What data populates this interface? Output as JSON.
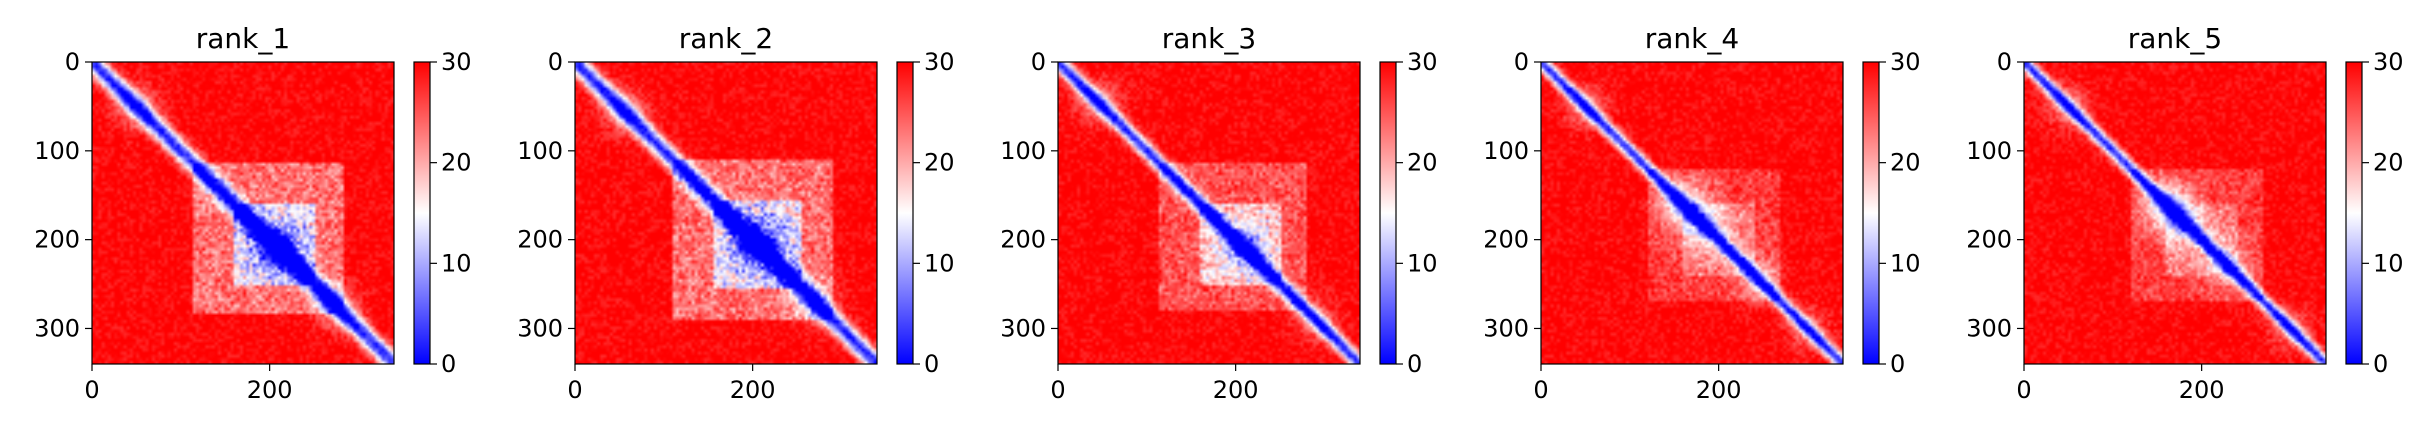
{
  "chart_data": [
    {
      "type": "heatmap",
      "title": "rank_1",
      "xlim": [
        0,
        340
      ],
      "ylim": [
        340,
        0
      ],
      "xticks": [
        {
          "value": 0,
          "label": "0"
        },
        {
          "value": 200,
          "label": "200"
        }
      ],
      "yticks": [
        {
          "value": 0,
          "label": "0"
        },
        {
          "value": 100,
          "label": "100"
        },
        {
          "value": 200,
          "label": "200"
        },
        {
          "value": 300,
          "label": "300"
        }
      ],
      "colorbar": {
        "min": 0,
        "max": 30,
        "ticks": [
          0,
          10,
          20,
          30
        ],
        "colors": [
          "#0000ff",
          "#ffffff",
          "#ff0000"
        ]
      },
      "features": {
        "diag_width": 10,
        "domain": [
          115,
          285
        ],
        "domain_strength": 0.55,
        "core": [
          160,
          250
        ],
        "core_strength": 0.85,
        "blobs": [
          [
            210,
            210,
            1.0
          ],
          [
            50,
            50,
            0.5
          ],
          [
            275,
            275,
            0.6
          ]
        ]
      }
    },
    {
      "type": "heatmap",
      "title": "rank_2",
      "xlim": [
        0,
        340
      ],
      "ylim": [
        340,
        0
      ],
      "xticks": [
        {
          "value": 0,
          "label": "0"
        },
        {
          "value": 200,
          "label": "200"
        }
      ],
      "yticks": [
        {
          "value": 0,
          "label": "0"
        },
        {
          "value": 100,
          "label": "100"
        },
        {
          "value": 200,
          "label": "200"
        },
        {
          "value": 300,
          "label": "300"
        }
      ],
      "colorbar": {
        "min": 0,
        "max": 30,
        "ticks": [
          0,
          10,
          20,
          30
        ],
        "colors": [
          "#0000ff",
          "#ffffff",
          "#ff0000"
        ]
      },
      "features": {
        "diag_width": 10,
        "domain": [
          110,
          290
        ],
        "domain_strength": 0.55,
        "core": [
          155,
          255
        ],
        "core_strength": 0.85,
        "blobs": [
          [
            205,
            205,
            1.0
          ],
          [
            55,
            55,
            0.5
          ],
          [
            270,
            270,
            0.5
          ]
        ]
      }
    },
    {
      "type": "heatmap",
      "title": "rank_3",
      "xlim": [
        0,
        340
      ],
      "ylim": [
        340,
        0
      ],
      "xticks": [
        {
          "value": 0,
          "label": "0"
        },
        {
          "value": 200,
          "label": "200"
        }
      ],
      "yticks": [
        {
          "value": 0,
          "label": "0"
        },
        {
          "value": 100,
          "label": "100"
        },
        {
          "value": 200,
          "label": "200"
        },
        {
          "value": 300,
          "label": "300"
        }
      ],
      "colorbar": {
        "min": 0,
        "max": 30,
        "ticks": [
          0,
          10,
          20,
          30
        ],
        "colors": [
          "#0000ff",
          "#ffffff",
          "#ff0000"
        ]
      },
      "features": {
        "diag_width": 8,
        "domain": [
          115,
          280
        ],
        "domain_strength": 0.4,
        "core": [
          160,
          250
        ],
        "core_strength": 0.6,
        "blobs": [
          [
            210,
            210,
            0.8
          ],
          [
            45,
            45,
            0.5
          ],
          [
            290,
            290,
            0.4
          ]
        ]
      }
    },
    {
      "type": "heatmap",
      "title": "rank_4",
      "xlim": [
        0,
        340
      ],
      "ylim": [
        340,
        0
      ],
      "xticks": [
        {
          "value": 0,
          "label": "0"
        },
        {
          "value": 200,
          "label": "200"
        }
      ],
      "yticks": [
        {
          "value": 0,
          "label": "0"
        },
        {
          "value": 100,
          "label": "100"
        },
        {
          "value": 200,
          "label": "200"
        },
        {
          "value": 300,
          "label": "300"
        }
      ],
      "colorbar": {
        "min": 0,
        "max": 30,
        "ticks": [
          0,
          10,
          20,
          30
        ],
        "colors": [
          "#0000ff",
          "#ffffff",
          "#ff0000"
        ]
      },
      "features": {
        "diag_width": 7,
        "domain": [
          120,
          270
        ],
        "domain_strength": 0.3,
        "core": [
          160,
          240
        ],
        "core_strength": 0.35,
        "blobs": [
          [
            160,
            160,
            0.9
          ],
          [
            185,
            185,
            0.6
          ],
          [
            50,
            50,
            0.5
          ],
          [
            245,
            245,
            0.5
          ],
          [
            300,
            300,
            0.4
          ]
        ]
      }
    },
    {
      "type": "heatmap",
      "title": "rank_5",
      "xlim": [
        0,
        340
      ],
      "ylim": [
        340,
        0
      ],
      "xticks": [
        {
          "value": 0,
          "label": "0"
        },
        {
          "value": 200,
          "label": "200"
        }
      ],
      "yticks": [
        {
          "value": 0,
          "label": "0"
        },
        {
          "value": 100,
          "label": "100"
        },
        {
          "value": 200,
          "label": "200"
        },
        {
          "value": 300,
          "label": "300"
        }
      ],
      "colorbar": {
        "min": 0,
        "max": 30,
        "ticks": [
          0,
          10,
          20,
          30
        ],
        "colors": [
          "#0000ff",
          "#ffffff",
          "#ff0000"
        ]
      },
      "features": {
        "diag_width": 7,
        "domain": [
          120,
          270
        ],
        "domain_strength": 0.3,
        "core": [
          160,
          240
        ],
        "core_strength": 0.35,
        "blobs": [
          [
            160,
            160,
            0.9
          ],
          [
            180,
            180,
            0.6
          ],
          [
            50,
            50,
            0.5
          ],
          [
            230,
            230,
            0.5
          ],
          [
            300,
            300,
            0.4
          ]
        ]
      }
    }
  ]
}
